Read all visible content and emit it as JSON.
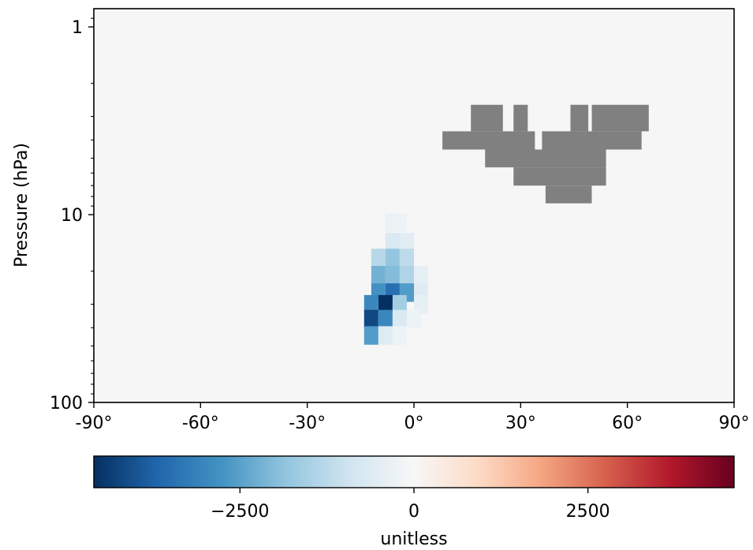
{
  "chart_data": {
    "type": "heatmap",
    "title": "",
    "xlabel": "",
    "ylabel": "Pressure (hPa)",
    "x_range": [
      -90,
      90
    ],
    "y_range_hpa": [
      100,
      0.8
    ],
    "y_scale": "log",
    "y_inverted": true,
    "x_ticks": [
      -90,
      -60,
      -30,
      0,
      30,
      60,
      90
    ],
    "x_tick_labels": [
      "-90°",
      "-60°",
      "-30°",
      "0°",
      "30°",
      "60°",
      "90°"
    ],
    "y_ticks": [
      1,
      10,
      100
    ],
    "y_tick_labels": [
      "1",
      "10",
      "100"
    ],
    "background_value": 0,
    "missing_color": "#808080",
    "colormap": "RdBu_r",
    "vmin": -4600,
    "vmax": 4600,
    "colorbar": {
      "label": "unitless",
      "ticks": [
        -2500,
        0,
        2500
      ],
      "tick_labels": [
        "−2500",
        "0",
        "2500"
      ],
      "placement": "bottom"
    },
    "cells": [
      {
        "lat": -6,
        "p": 11.0,
        "value": -300
      },
      {
        "lat": -4,
        "p": 11.0,
        "value": -250
      },
      {
        "lat": -6,
        "p": 14.0,
        "value": -700
      },
      {
        "lat": -2,
        "p": 14.0,
        "value": -500
      },
      {
        "lat": -10,
        "p": 17.0,
        "value": -1300
      },
      {
        "lat": -6,
        "p": 17.0,
        "value": -1800
      },
      {
        "lat": -2,
        "p": 17.0,
        "value": -1200
      },
      {
        "lat": -10,
        "p": 21.0,
        "value": -2200
      },
      {
        "lat": -6,
        "p": 21.0,
        "value": -2000
      },
      {
        "lat": -2,
        "p": 21.0,
        "value": -1400
      },
      {
        "lat": 2,
        "p": 21.0,
        "value": -400
      },
      {
        "lat": -10,
        "p": 26.0,
        "value": -2800
      },
      {
        "lat": -6,
        "p": 26.0,
        "value": -3500
      },
      {
        "lat": -2,
        "p": 26.0,
        "value": -2600
      },
      {
        "lat": 2,
        "p": 26.0,
        "value": -600
      },
      {
        "lat": -12,
        "p": 30.0,
        "value": -3000
      },
      {
        "lat": -8,
        "p": 30.0,
        "value": -4600
      },
      {
        "lat": -4,
        "p": 30.0,
        "value": -1600
      },
      {
        "lat": 2,
        "p": 30.0,
        "value": -400
      },
      {
        "lat": -12,
        "p": 36.0,
        "value": -4200
      },
      {
        "lat": -8,
        "p": 36.0,
        "value": -3000
      },
      {
        "lat": -4,
        "p": 36.0,
        "value": -700
      },
      {
        "lat": 0,
        "p": 36.0,
        "value": -250
      },
      {
        "lat": -12,
        "p": 44.0,
        "value": -2600
      },
      {
        "lat": -8,
        "p": 44.0,
        "value": -600
      },
      {
        "lat": -4,
        "p": 44.0,
        "value": -250
      }
    ],
    "missing_blocks": [
      {
        "lat": [
          16,
          25
        ],
        "p": [
          2.6,
          3.6
        ]
      },
      {
        "lat": [
          28,
          32
        ],
        "p": [
          2.6,
          3.6
        ]
      },
      {
        "lat": [
          44,
          49
        ],
        "p": [
          2.6,
          3.6
        ]
      },
      {
        "lat": [
          50,
          66
        ],
        "p": [
          2.6,
          3.6
        ]
      },
      {
        "lat": [
          8,
          34
        ],
        "p": [
          3.6,
          4.5
        ]
      },
      {
        "lat": [
          36,
          64
        ],
        "p": [
          3.6,
          4.5
        ]
      },
      {
        "lat": [
          20,
          54
        ],
        "p": [
          4.5,
          5.6
        ]
      },
      {
        "lat": [
          28,
          54
        ],
        "p": [
          5.6,
          7.0
        ]
      },
      {
        "lat": [
          37,
          50
        ],
        "p": [
          7.0,
          8.7
        ]
      }
    ]
  }
}
